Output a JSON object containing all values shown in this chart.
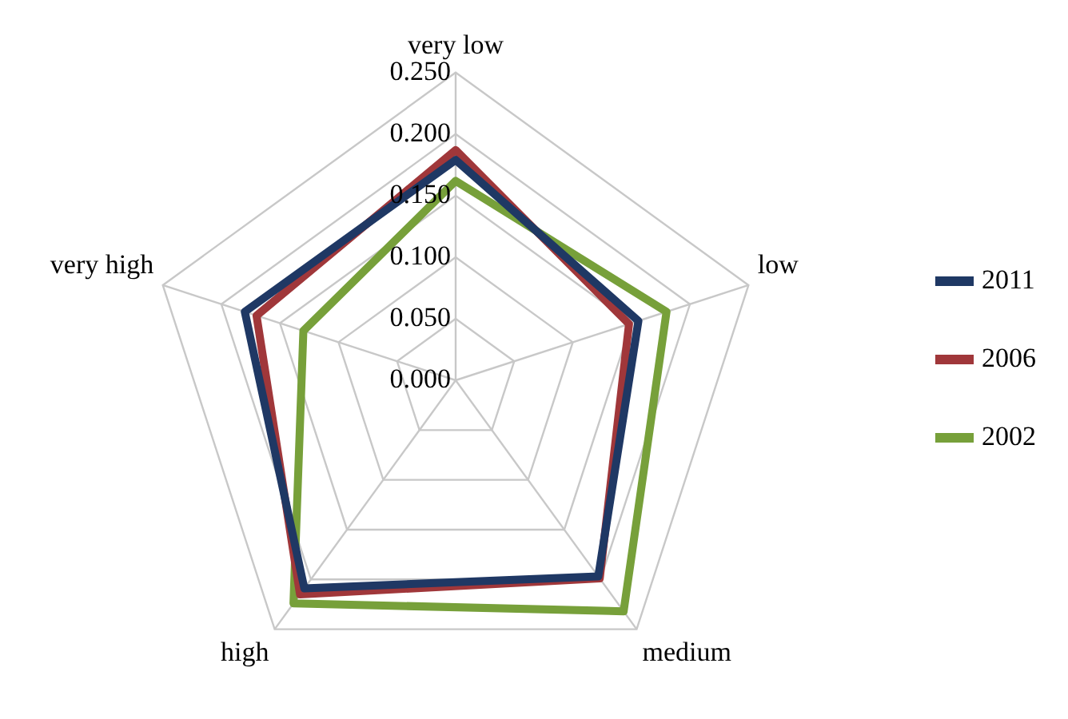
{
  "chart_data": {
    "type": "radar",
    "categories": [
      "very low",
      "low",
      "medium",
      "high",
      "very high"
    ],
    "series": [
      {
        "name": "2011",
        "color": "#1f3864",
        "values": [
          0.179,
          0.156,
          0.197,
          0.209,
          0.18
        ]
      },
      {
        "name": "2006",
        "color": "#a0373a",
        "values": [
          0.187,
          0.148,
          0.199,
          0.215,
          0.17
        ]
      },
      {
        "name": "2002",
        "color": "#77a03a",
        "values": [
          0.162,
          0.18,
          0.232,
          0.224,
          0.13
        ]
      }
    ],
    "ylim": [
      0,
      0.25
    ],
    "yticks": [
      {
        "value": 0,
        "label": "0.000"
      },
      {
        "value": 0.05,
        "label": "0.050"
      },
      {
        "value": 0.1,
        "label": "0.100"
      },
      {
        "value": 0.15,
        "label": "0.150"
      },
      {
        "value": 0.2,
        "label": "0.200"
      },
      {
        "value": 0.25,
        "label": "0.250"
      }
    ],
    "grid": true,
    "legend": "right",
    "marker": "none",
    "line_style": "solid"
  }
}
